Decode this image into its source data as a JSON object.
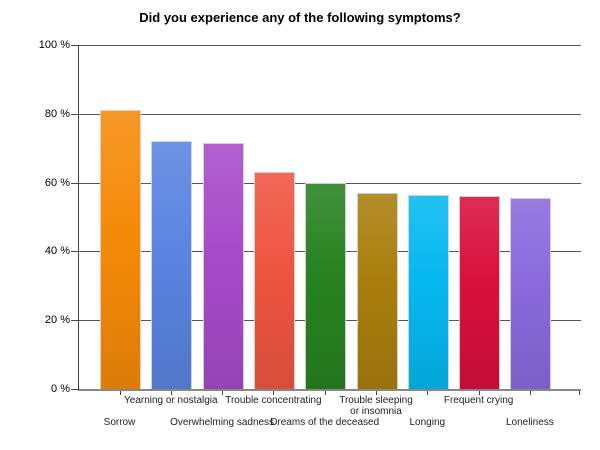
{
  "chart_data": {
    "type": "bar",
    "title": "Did you experience any of the following symptoms?",
    "categories": [
      "Sorrow",
      "Yearning or nostalgia",
      "Overwhelming sadness",
      "Trouble concentrating",
      "Dreams of the deceased",
      "Trouble sleeping or insomnia",
      "Longing",
      "Frequent crying",
      "Loneliness"
    ],
    "values": [
      81,
      72,
      71.5,
      63,
      60,
      57,
      56.5,
      56,
      55.5
    ],
    "unit": "%",
    "bar_colors": [
      "#F58A08",
      "#5A84E0",
      "#A64BC8",
      "#EE5540",
      "#278220",
      "#AA7E0D",
      "#04B8F0",
      "#D8103C",
      "#8A6ADC"
    ],
    "ylim": [
      0,
      100
    ],
    "ytick_values": [
      100,
      80,
      60,
      40,
      20,
      0
    ],
    "ytick_labels": [
      "100 %",
      "80 %",
      "60 %",
      "40 %",
      "20 %",
      "0 %"
    ],
    "xlabel": "",
    "ylabel": "",
    "grid": true,
    "legend": "none",
    "label_layout": "staggered-two-rows"
  }
}
